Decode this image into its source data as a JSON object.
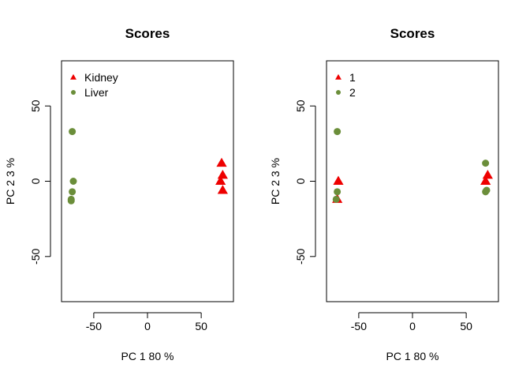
{
  "chart_data": [
    {
      "type": "scatter",
      "title": "Scores",
      "xlabel": "PC 1 80 %",
      "ylabel": "PC 2 3 %",
      "xlim": [
        -80,
        80
      ],
      "ylim": [
        -80,
        80
      ],
      "xticks": [
        -50,
        0,
        50
      ],
      "yticks": [
        -50,
        0,
        50
      ],
      "grid": false,
      "legend_position": "top-left",
      "series": [
        {
          "name": "Kidney",
          "marker": "triangle",
          "color": "#ee0000",
          "points": [
            {
              "x": 69,
              "y": 12
            },
            {
              "x": 70,
              "y": 4
            },
            {
              "x": 68,
              "y": 0
            },
            {
              "x": 70,
              "y": -6
            }
          ]
        },
        {
          "name": "Liver",
          "marker": "circle",
          "color": "#6b8e3a",
          "points": [
            {
              "x": -70,
              "y": 33
            },
            {
              "x": -69,
              "y": 0
            },
            {
              "x": -70,
              "y": -7
            },
            {
              "x": -71,
              "y": -12
            },
            {
              "x": -71,
              "y": -13
            }
          ]
        }
      ]
    },
    {
      "type": "scatter",
      "title": "Scores",
      "xlabel": "PC 1 80 %",
      "ylabel": "PC 2 3 %",
      "xlim": [
        -80,
        80
      ],
      "ylim": [
        -80,
        80
      ],
      "xticks": [
        -50,
        0,
        50
      ],
      "yticks": [
        -50,
        0,
        50
      ],
      "grid": false,
      "legend_position": "top-left",
      "series": [
        {
          "name": "1",
          "marker": "triangle",
          "color": "#ee0000",
          "points": [
            {
              "x": -69,
              "y": 0
            },
            {
              "x": -70,
              "y": -12
            },
            {
              "x": 70,
              "y": 4
            },
            {
              "x": 68,
              "y": 0
            }
          ]
        },
        {
          "name": "2",
          "marker": "circle",
          "color": "#6b8e3a",
          "points": [
            {
              "x": -70,
              "y": 33
            },
            {
              "x": -70,
              "y": -7
            },
            {
              "x": -71,
              "y": -12
            },
            {
              "x": 68,
              "y": 12
            },
            {
              "x": 69,
              "y": -6
            },
            {
              "x": 68,
              "y": -7
            }
          ]
        }
      ]
    }
  ]
}
